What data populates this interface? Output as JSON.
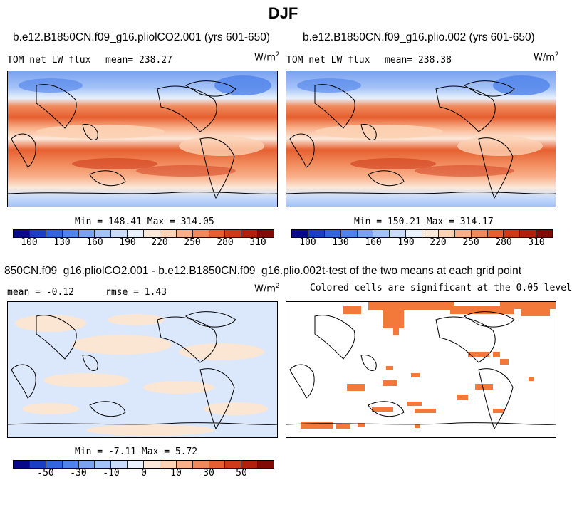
{
  "title": "DJF",
  "panels": {
    "p1": {
      "run": "b.e12.B1850CN.f09_g16.pliolCO2.001 (yrs 601-650)",
      "var": "TOM net LW flux",
      "mean_label": "mean= 238.27",
      "units": "W/m",
      "units_exp": "2",
      "stats": "Min = 148.41 Max = 314.05"
    },
    "p2": {
      "run": "b.e12.B1850CN.f09_g16.plio.002 (yrs 601-650)",
      "var": "TOM net LW flux",
      "mean_label": "mean= 238.38",
      "units": "W/m",
      "units_exp": "2",
      "stats": "Min = 150.21 Max = 314.17"
    },
    "p3": {
      "run": "850CN.f09_g16.pliolCO2.001 - b.e12.B1850CN.f09_g16.plio.002",
      "mean_label": "mean =  -0.12",
      "rmse_label": "rmse =   1.43",
      "units": "W/m",
      "units_exp": "2",
      "stats": "Min =  -7.11 Max =   5.72"
    },
    "p4": {
      "run": "t-test of the two means at each grid point",
      "subtitle": "Colored cells are significant at the 0.05 level"
    }
  },
  "colorbar_abs": {
    "ticks": [
      "100",
      "130",
      "160",
      "190",
      "220",
      "250",
      "280",
      "310"
    ]
  },
  "colorbar_diff": {
    "ticks": [
      "-50",
      "-30",
      "-10",
      "0",
      "10",
      "30",
      "50"
    ]
  },
  "colors": {
    "palette": [
      "#08088a",
      "#1a3fc4",
      "#3366dd",
      "#4f82ea",
      "#7aa2f0",
      "#a3c2f7",
      "#c9dcfa",
      "#e8f1fc",
      "#fbe8d9",
      "#fcd2b4",
      "#f9b08a",
      "#f08a5c",
      "#e65f30",
      "#cf3a18",
      "#b0200c",
      "#7f0a06"
    ],
    "significant": "#f3793a"
  }
}
